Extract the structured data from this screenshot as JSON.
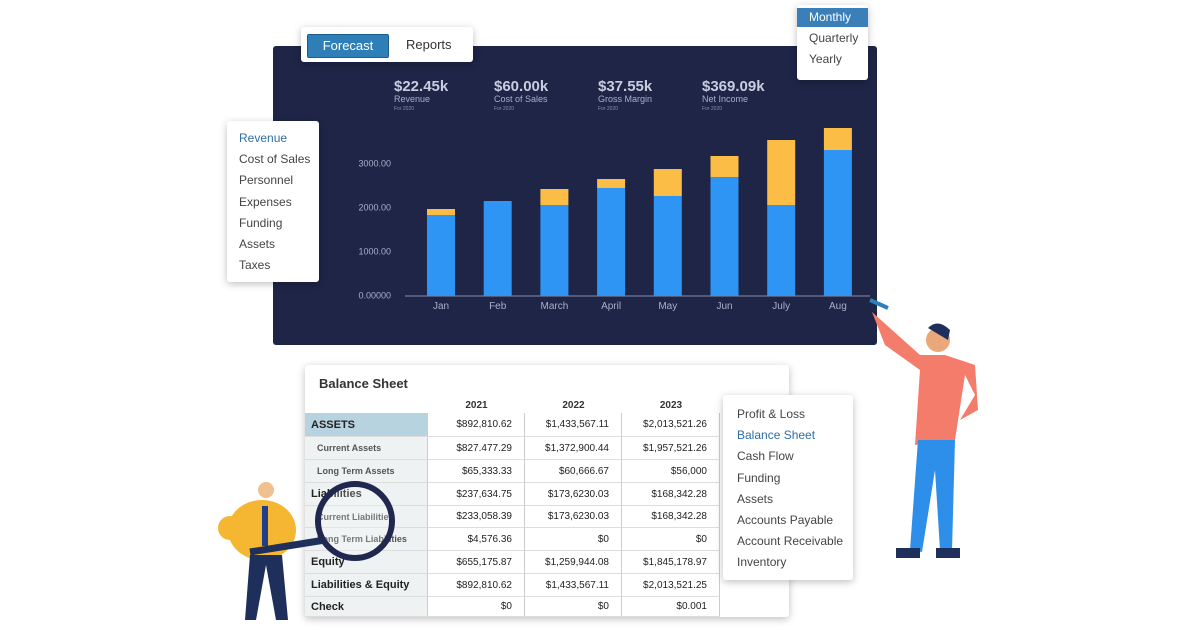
{
  "tabs": [
    "Forecast",
    "Reports"
  ],
  "period_menu": [
    "Monthly",
    "Quarterly",
    "Yearly"
  ],
  "kpis": [
    {
      "value": "$22.45k",
      "label": "Revenue",
      "note": "For 2020"
    },
    {
      "value": "$60.00k",
      "label": "Cost of Sales",
      "note": "For 2020"
    },
    {
      "value": "$37.55k",
      "label": "Gross Margin",
      "note": "For 2020"
    },
    {
      "value": "$369.09k",
      "label": "Net Income",
      "note": "For 2020"
    }
  ],
  "side_menu": [
    "Revenue",
    "Cost of Sales",
    "Personnel",
    "Expenses",
    "Funding",
    "Assets",
    "Taxes"
  ],
  "chart": {
    "type": "bar",
    "stacked": true,
    "categories": [
      "Jan",
      "Feb",
      "March",
      "April",
      "May",
      "Jun",
      "July",
      "Aug"
    ],
    "series": [
      {
        "color": "#2e95f5",
        "values": [
          1841,
          2159,
          2068,
          2455,
          2273,
          2705,
          2068,
          3318
        ]
      },
      {
        "color": "#fbbd45",
        "values": [
          136,
          0,
          364,
          204,
          613,
          477,
          1477,
          500
        ]
      }
    ],
    "ylim": [
      0,
      4000
    ],
    "yticks": [
      {
        "value": 0,
        "label": "0.00000"
      },
      {
        "value": 1000,
        "label": "1000.00"
      },
      {
        "value": 2000,
        "label": "2000.00"
      },
      {
        "value": 3000,
        "label": "3000.00"
      }
    ]
  },
  "balance_sheet": {
    "title": "Balance Sheet",
    "columns": [
      "2021",
      "2022",
      "2023"
    ],
    "rows": [
      [
        "ASSETS",
        "$892,810.62",
        "$1,433,567.11",
        "$2,013,521.26"
      ],
      [
        "Current Assets",
        "$827.477.29",
        "$1,372,900.44",
        "$1,957,521.26"
      ],
      [
        "Long Term Assets",
        "$65,333.33",
        "$60,666.67",
        "$56,000"
      ],
      [
        "Liabilities",
        "$237,634.75",
        "$173,6230.03",
        "$168,342.28"
      ],
      [
        "Current Liabilities",
        "$233,058.39",
        "$173,6230.03",
        "$168,342.28"
      ],
      [
        "Long Term Liabilities",
        "$4,576.36",
        "$0",
        "$0"
      ],
      [
        "Equity",
        "$655,175.87",
        "$1,259,944.08",
        "$1,845,178.97"
      ],
      [
        "Liabilities & Equity",
        "$892,810.62",
        "$1,433,567.11",
        "$2,013,521.25"
      ],
      [
        "Check",
        "$0",
        "$0",
        "$0.001"
      ]
    ]
  },
  "report_menu": [
    "Profit & Loss",
    "Balance Sheet",
    "Cash Flow",
    "Funding",
    "Assets",
    "Accounts Payable",
    "Account Receivable",
    "Inventory"
  ]
}
